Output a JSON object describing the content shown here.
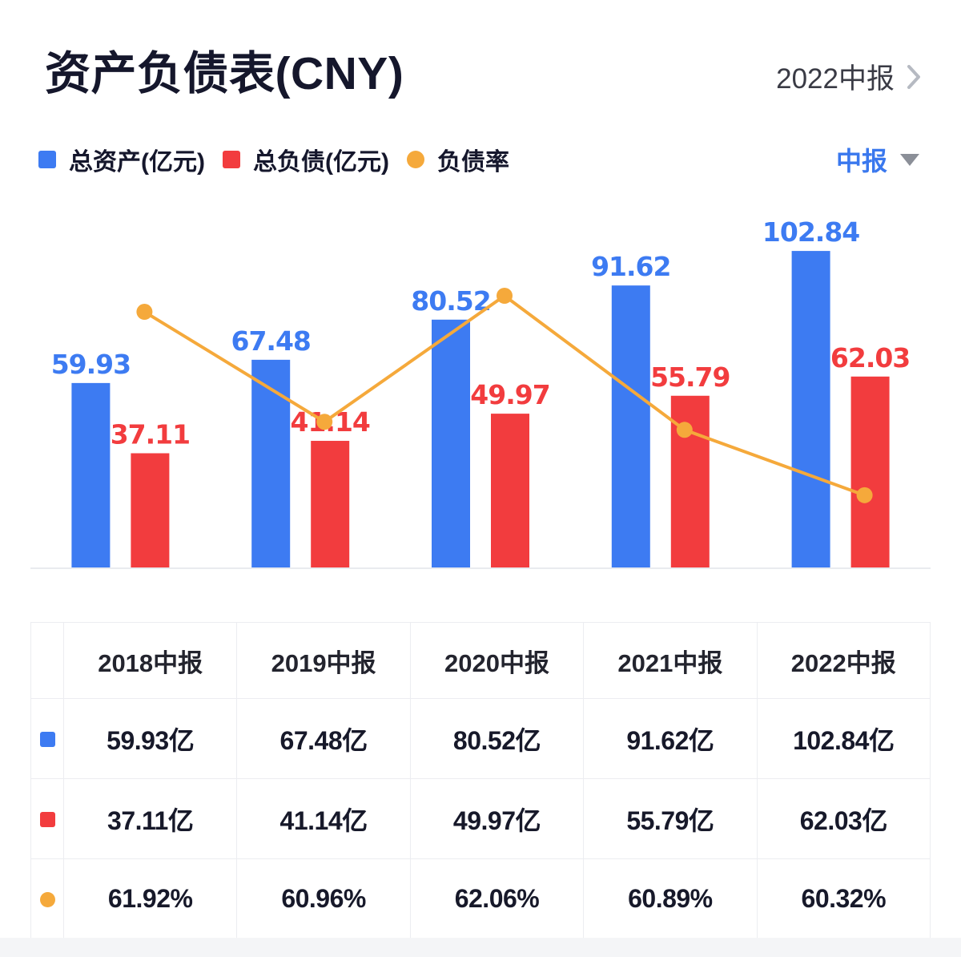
{
  "header": {
    "title": "资产负债表(CNY)",
    "period_link_label": "2022中报"
  },
  "legend": [
    {
      "label": "总资产(亿元)",
      "color": "#3D7BF2",
      "shape": "square"
    },
    {
      "label": "总负债(亿元)",
      "color": "#F23C3E",
      "shape": "square"
    },
    {
      "label": "负债率",
      "color": "#F5A93B",
      "shape": "circle"
    }
  ],
  "period_dropdown": {
    "label": "中报"
  },
  "chart_data": {
    "type": "bar",
    "title": "资产负债表(CNY)",
    "categories": [
      "2018中报",
      "2019中报",
      "2020中报",
      "2021中报",
      "2022中报"
    ],
    "series": [
      {
        "name": "总资产(亿元)",
        "type": "bar",
        "color": "#3D7BF2",
        "values": [
          59.93,
          67.48,
          80.52,
          91.62,
          102.84
        ]
      },
      {
        "name": "总负债(亿元)",
        "type": "bar",
        "color": "#F23C3E",
        "values": [
          37.11,
          41.14,
          49.97,
          55.79,
          62.03
        ]
      },
      {
        "name": "负债率",
        "type": "line",
        "color": "#F5A93B",
        "unit": "%",
        "values": [
          61.92,
          60.96,
          62.06,
          60.89,
          60.32
        ]
      }
    ],
    "value_labels": true,
    "legend_position": "top",
    "axes_hidden": true,
    "baseline_color": "#e9ebef"
  },
  "table": {
    "columns": [
      "2018中报",
      "2019中报",
      "2020中报",
      "2021中报",
      "2022中报"
    ],
    "rows": [
      {
        "marker": "blue-square",
        "marker_color": "#3D7BF2",
        "values": [
          "59.93亿",
          "67.48亿",
          "80.52亿",
          "91.62亿",
          "102.84亿"
        ]
      },
      {
        "marker": "red-square",
        "marker_color": "#F23C3E",
        "values": [
          "37.11亿",
          "41.14亿",
          "49.97亿",
          "55.79亿",
          "62.03亿"
        ]
      },
      {
        "marker": "orange-circle",
        "marker_color": "#F5A93B",
        "values": [
          "61.92%",
          "60.96%",
          "62.06%",
          "60.89%",
          "60.32%"
        ]
      }
    ]
  }
}
